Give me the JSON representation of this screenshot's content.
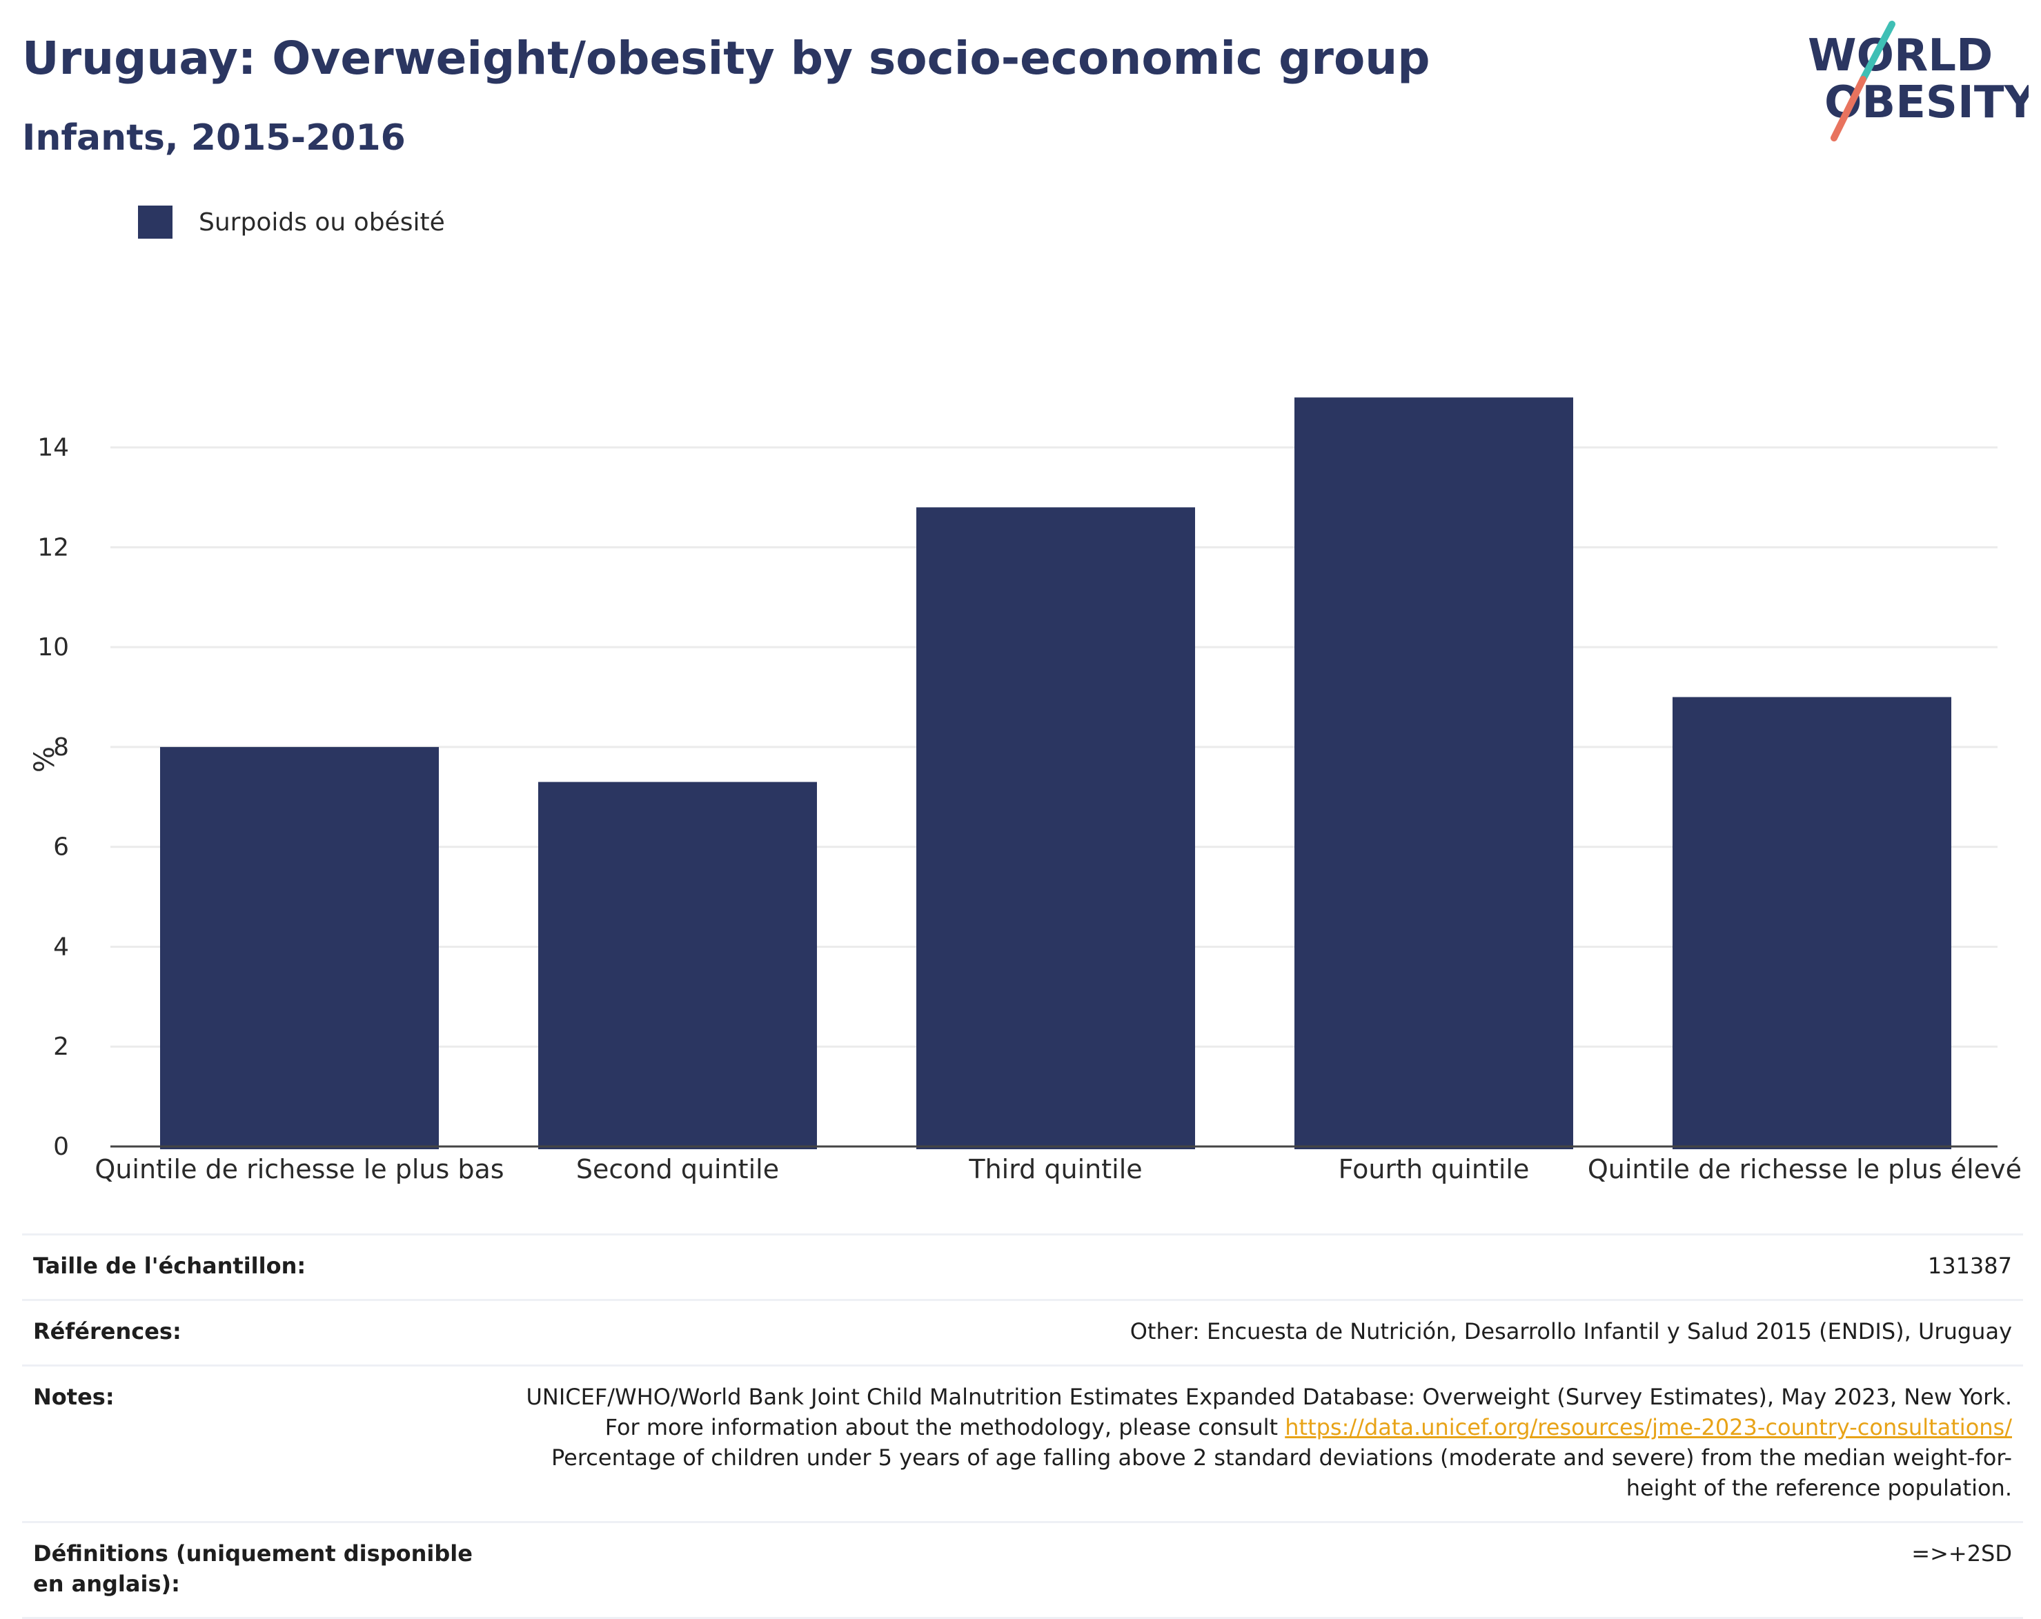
{
  "header": {
    "title": "Uruguay: Overweight/obesity by socio-economic group",
    "subtitle": "Infants, 2015-2016"
  },
  "logo": {
    "line1": "WORLD",
    "line2": "OBESITY",
    "accent_teal": "#3fbfb5",
    "accent_coral": "#e8735e",
    "text_color": "#2b3661"
  },
  "chart_data": {
    "type": "bar",
    "categories": [
      "Quintile de richesse le plus bas",
      "Second quintile",
      "Third quintile",
      "Fourth quintile",
      "Quintile de richesse le plus élevé"
    ],
    "series": [
      {
        "name": "Surpoids ou obésité",
        "color": "#2b3661",
        "values": [
          8.0,
          7.3,
          12.8,
          15.0,
          9.0
        ]
      }
    ],
    "ylabel": "%",
    "xlabel": "",
    "ylim": [
      0,
      15.5
    ],
    "yticks": [
      0,
      2,
      4,
      6,
      8,
      10,
      12,
      14
    ],
    "grid": true,
    "legend_position": "top-left"
  },
  "info": {
    "sample": {
      "label": "Taille de l'échantillon:",
      "value": "131387"
    },
    "references": {
      "label": "Références:",
      "value": "Other: Encuesta de Nutrición, Desarrollo Infantil y Salud 2015 (ENDIS), Uruguay"
    },
    "notes": {
      "label": "Notes:",
      "text1": "UNICEF/WHO/World Bank Joint Child Malnutrition Estimates Expanded Database: Overweight (Survey Estimates), May 2023, New York. For more information about the methodology, please consult ",
      "link": "https://data.unicef.org/resources/jme-2023-country-consultations/",
      "text2": " Percentage of children under 5 years of age falling above 2 standard deviations (moderate and severe) from the median weight-for-height of the reference population."
    },
    "definitions": {
      "label": "Définitions (uniquement disponible en anglais):",
      "value": "=>+2SD"
    }
  }
}
